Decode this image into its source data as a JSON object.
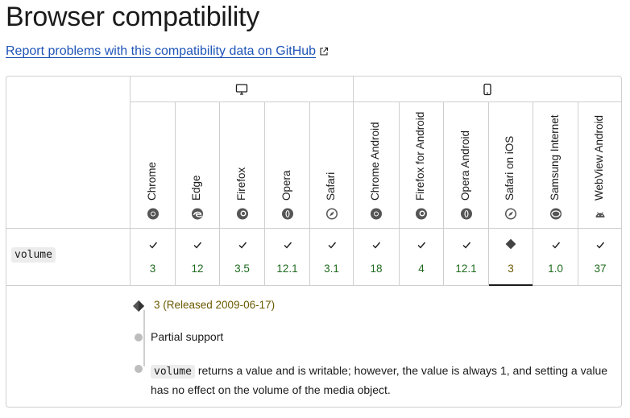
{
  "page": {
    "title": "Browser compatibility",
    "report_link": "Report problems with this compatibility data on GitHub"
  },
  "platforms": [
    {
      "name": "desktop",
      "icon": "desktop-icon"
    },
    {
      "name": "mobile",
      "icon": "mobile-icon"
    }
  ],
  "browsers": [
    {
      "name": "Chrome",
      "logo": "chrome-logo",
      "version": "3",
      "status": "full"
    },
    {
      "name": "Edge",
      "logo": "edge-logo",
      "version": "12",
      "status": "full"
    },
    {
      "name": "Firefox",
      "logo": "firefox-logo",
      "version": "3.5",
      "status": "full"
    },
    {
      "name": "Opera",
      "logo": "opera-logo",
      "version": "12.1",
      "status": "full"
    },
    {
      "name": "Safari",
      "logo": "safari-logo",
      "version": "3.1",
      "status": "full"
    },
    {
      "name": "Chrome Android",
      "logo": "chrome-logo",
      "version": "18",
      "status": "full"
    },
    {
      "name": "Firefox for Android",
      "logo": "firefox-logo",
      "version": "4",
      "status": "full"
    },
    {
      "name": "Opera Android",
      "logo": "opera-logo",
      "version": "12.1",
      "status": "full"
    },
    {
      "name": "Safari on iOS",
      "logo": "safari-logo",
      "version": "3",
      "status": "partial"
    },
    {
      "name": "Samsung Internet",
      "logo": "samsung-logo",
      "version": "1.0",
      "status": "full"
    },
    {
      "name": "WebView Android",
      "logo": "android-logo",
      "version": "37",
      "status": "full"
    }
  ],
  "feature": {
    "name": "volume"
  },
  "detail": {
    "release": "3 (Released 2009-06-17)",
    "partial_label": "Partial support",
    "note_code": "volume",
    "note_text": " returns a value and is writable; however, the value is always 1, and setting a value has no effect on the volume of the media object."
  },
  "colors": {
    "full_support": "#1e6b1e",
    "partial_support": "#6b5a00",
    "link": "#1f55b8",
    "border": "#cfcfcf"
  }
}
